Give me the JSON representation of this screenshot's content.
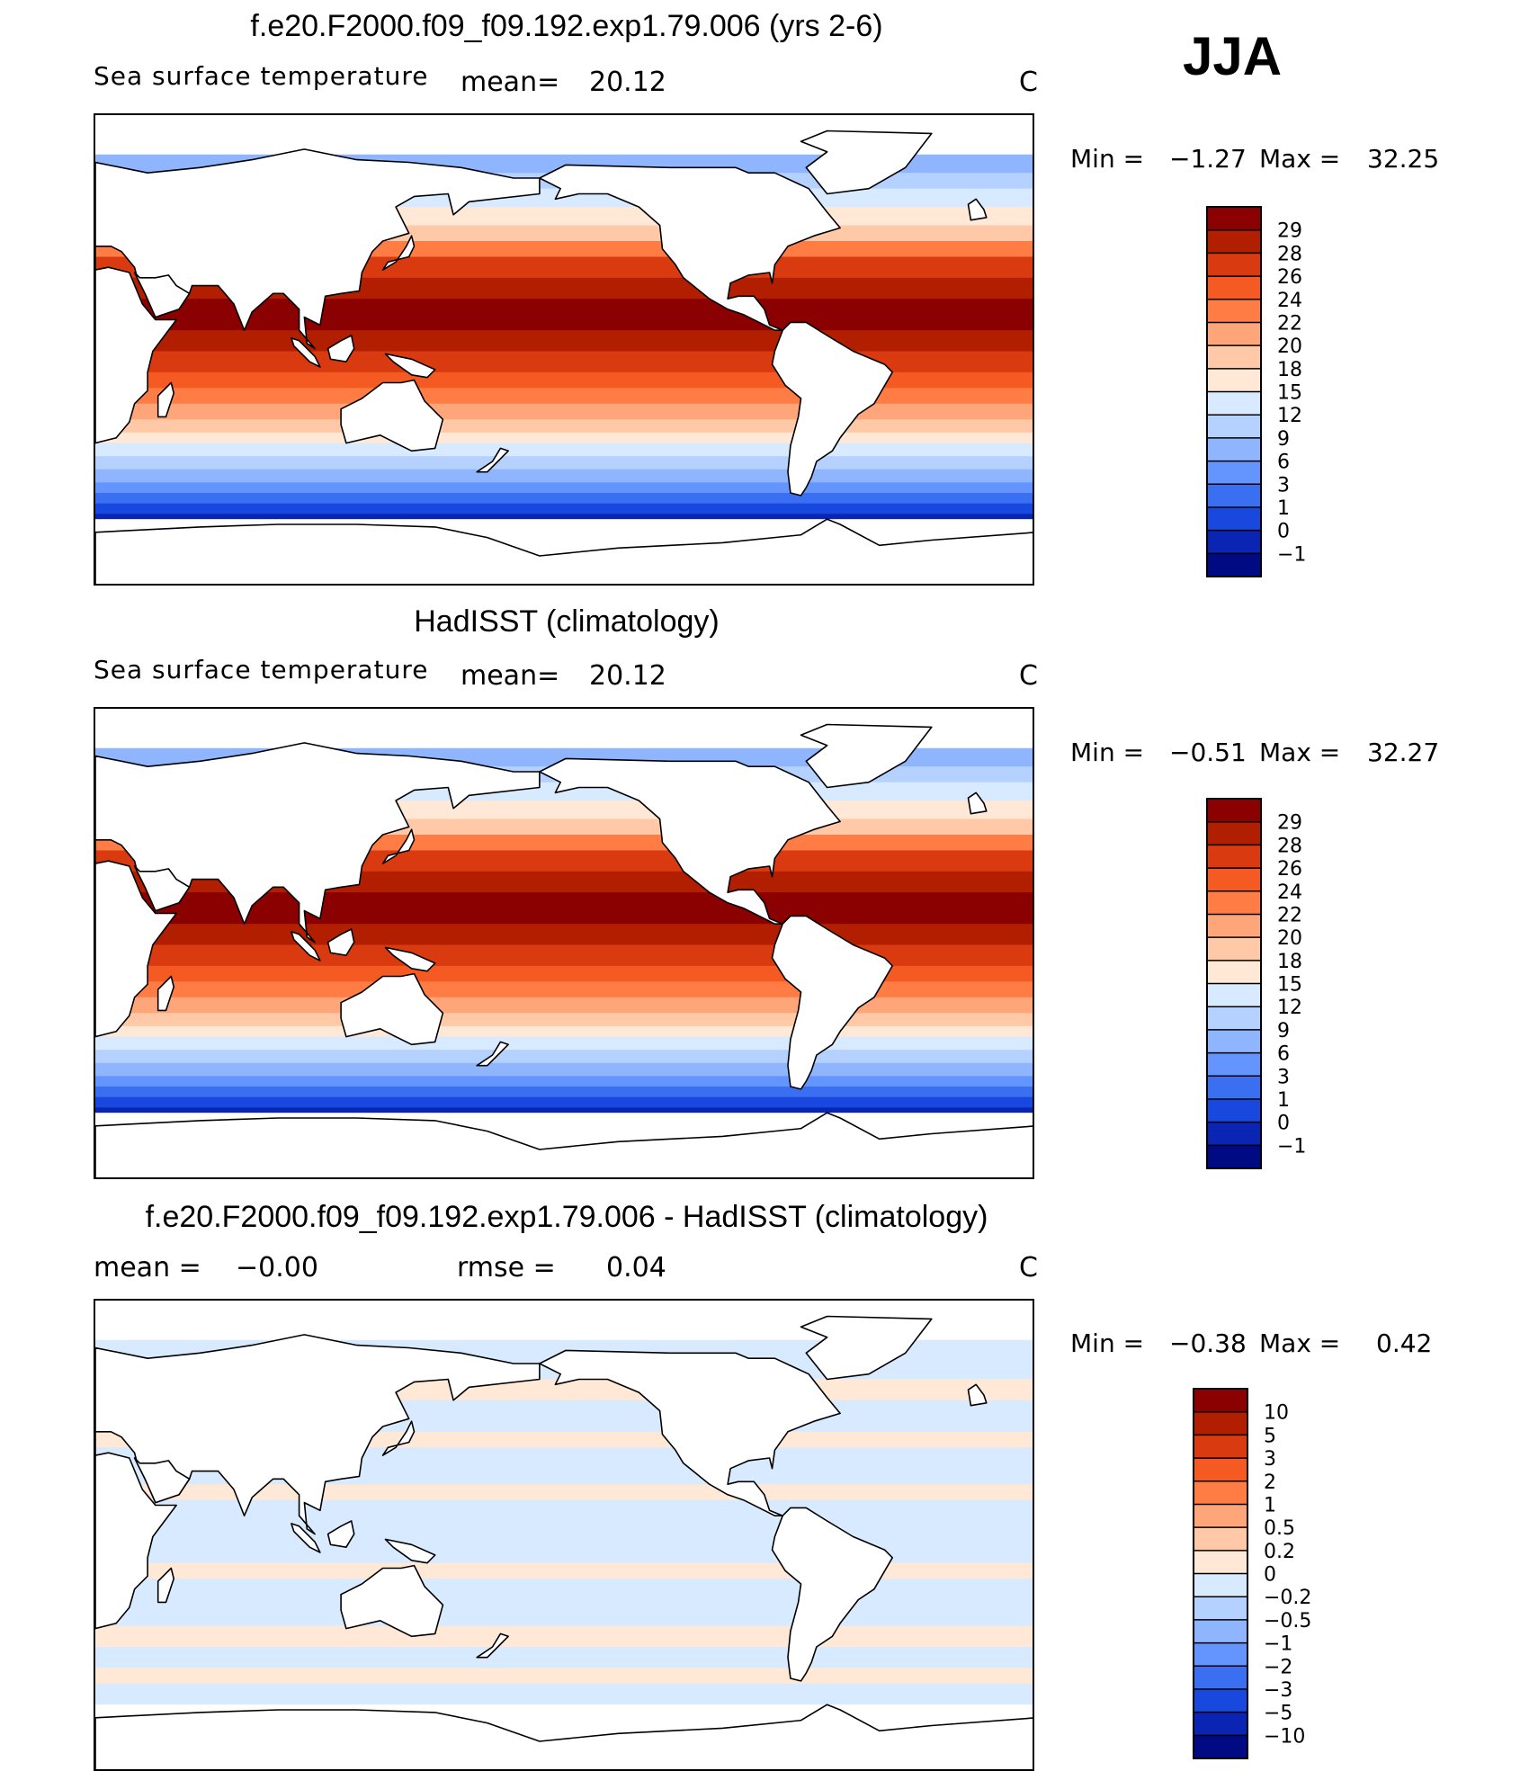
{
  "season": "JJA",
  "chart_data": [
    {
      "type": "heatmap",
      "title": "f.e20.F2000.f09_f09.192.exp1.79.006 (yrs 2-6)",
      "variable": "Sea surface temperature",
      "mean_label": "mean=",
      "mean_value": "20.12",
      "units": "C",
      "min_label": "Min =",
      "min_value": "−1.27",
      "max_label": "Max =",
      "max_value": "32.25",
      "levels": [
        "29",
        "28",
        "26",
        "24",
        "22",
        "20",
        "18",
        "15",
        "12",
        "9",
        "6",
        "3",
        "1",
        "0",
        "−1"
      ],
      "level_colors": [
        "#8b0000",
        "#b21e00",
        "#d93a10",
        "#f55a22",
        "#ff7d45",
        "#ffa57a",
        "#ffc9a8",
        "#ffe8d6",
        "#d8eaff",
        "#b4d1ff",
        "#8fb5ff",
        "#6495ff",
        "#3a6ff2",
        "#1848de",
        "#0a24b4",
        "#000a82"
      ]
    },
    {
      "type": "heatmap",
      "title": "HadISST (climatology)",
      "variable": "Sea surface temperature",
      "mean_label": "mean=",
      "mean_value": "20.12",
      "units": "C",
      "min_label": "Min =",
      "min_value": "−0.51",
      "max_label": "Max =",
      "max_value": "32.27",
      "levels": [
        "29",
        "28",
        "26",
        "24",
        "22",
        "20",
        "18",
        "15",
        "12",
        "9",
        "6",
        "3",
        "1",
        "0",
        "−1"
      ],
      "level_colors": [
        "#8b0000",
        "#b21e00",
        "#d93a10",
        "#f55a22",
        "#ff7d45",
        "#ffa57a",
        "#ffc9a8",
        "#ffe8d6",
        "#d8eaff",
        "#b4d1ff",
        "#8fb5ff",
        "#6495ff",
        "#3a6ff2",
        "#1848de",
        "#0a24b4",
        "#000a82"
      ]
    },
    {
      "type": "heatmap",
      "title": "f.e20.F2000.f09_f09.192.exp1.79.006 - HadISST (climatology)",
      "mean_label": "mean =",
      "mean_value": "−0.00",
      "rmse_label": "rmse =",
      "rmse_value": "0.04",
      "units": "C",
      "min_label": "Min =",
      "min_value": "−0.38",
      "max_label": "Max =",
      "max_value": "0.42",
      "levels": [
        "10",
        "5",
        "3",
        "2",
        "1",
        "0.5",
        "0.2",
        "0",
        "−0.2",
        "−0.5",
        "−1",
        "−2",
        "−3",
        "−5",
        "−10"
      ],
      "level_colors": [
        "#8b0000",
        "#b21e00",
        "#d93a10",
        "#f55a22",
        "#ff7d45",
        "#ffa57a",
        "#ffc9a8",
        "#ffe8d6",
        "#d8eaff",
        "#b4d1ff",
        "#8fb5ff",
        "#6495ff",
        "#3a6ff2",
        "#1848de",
        "#0a24b4",
        "#000a82"
      ]
    }
  ]
}
